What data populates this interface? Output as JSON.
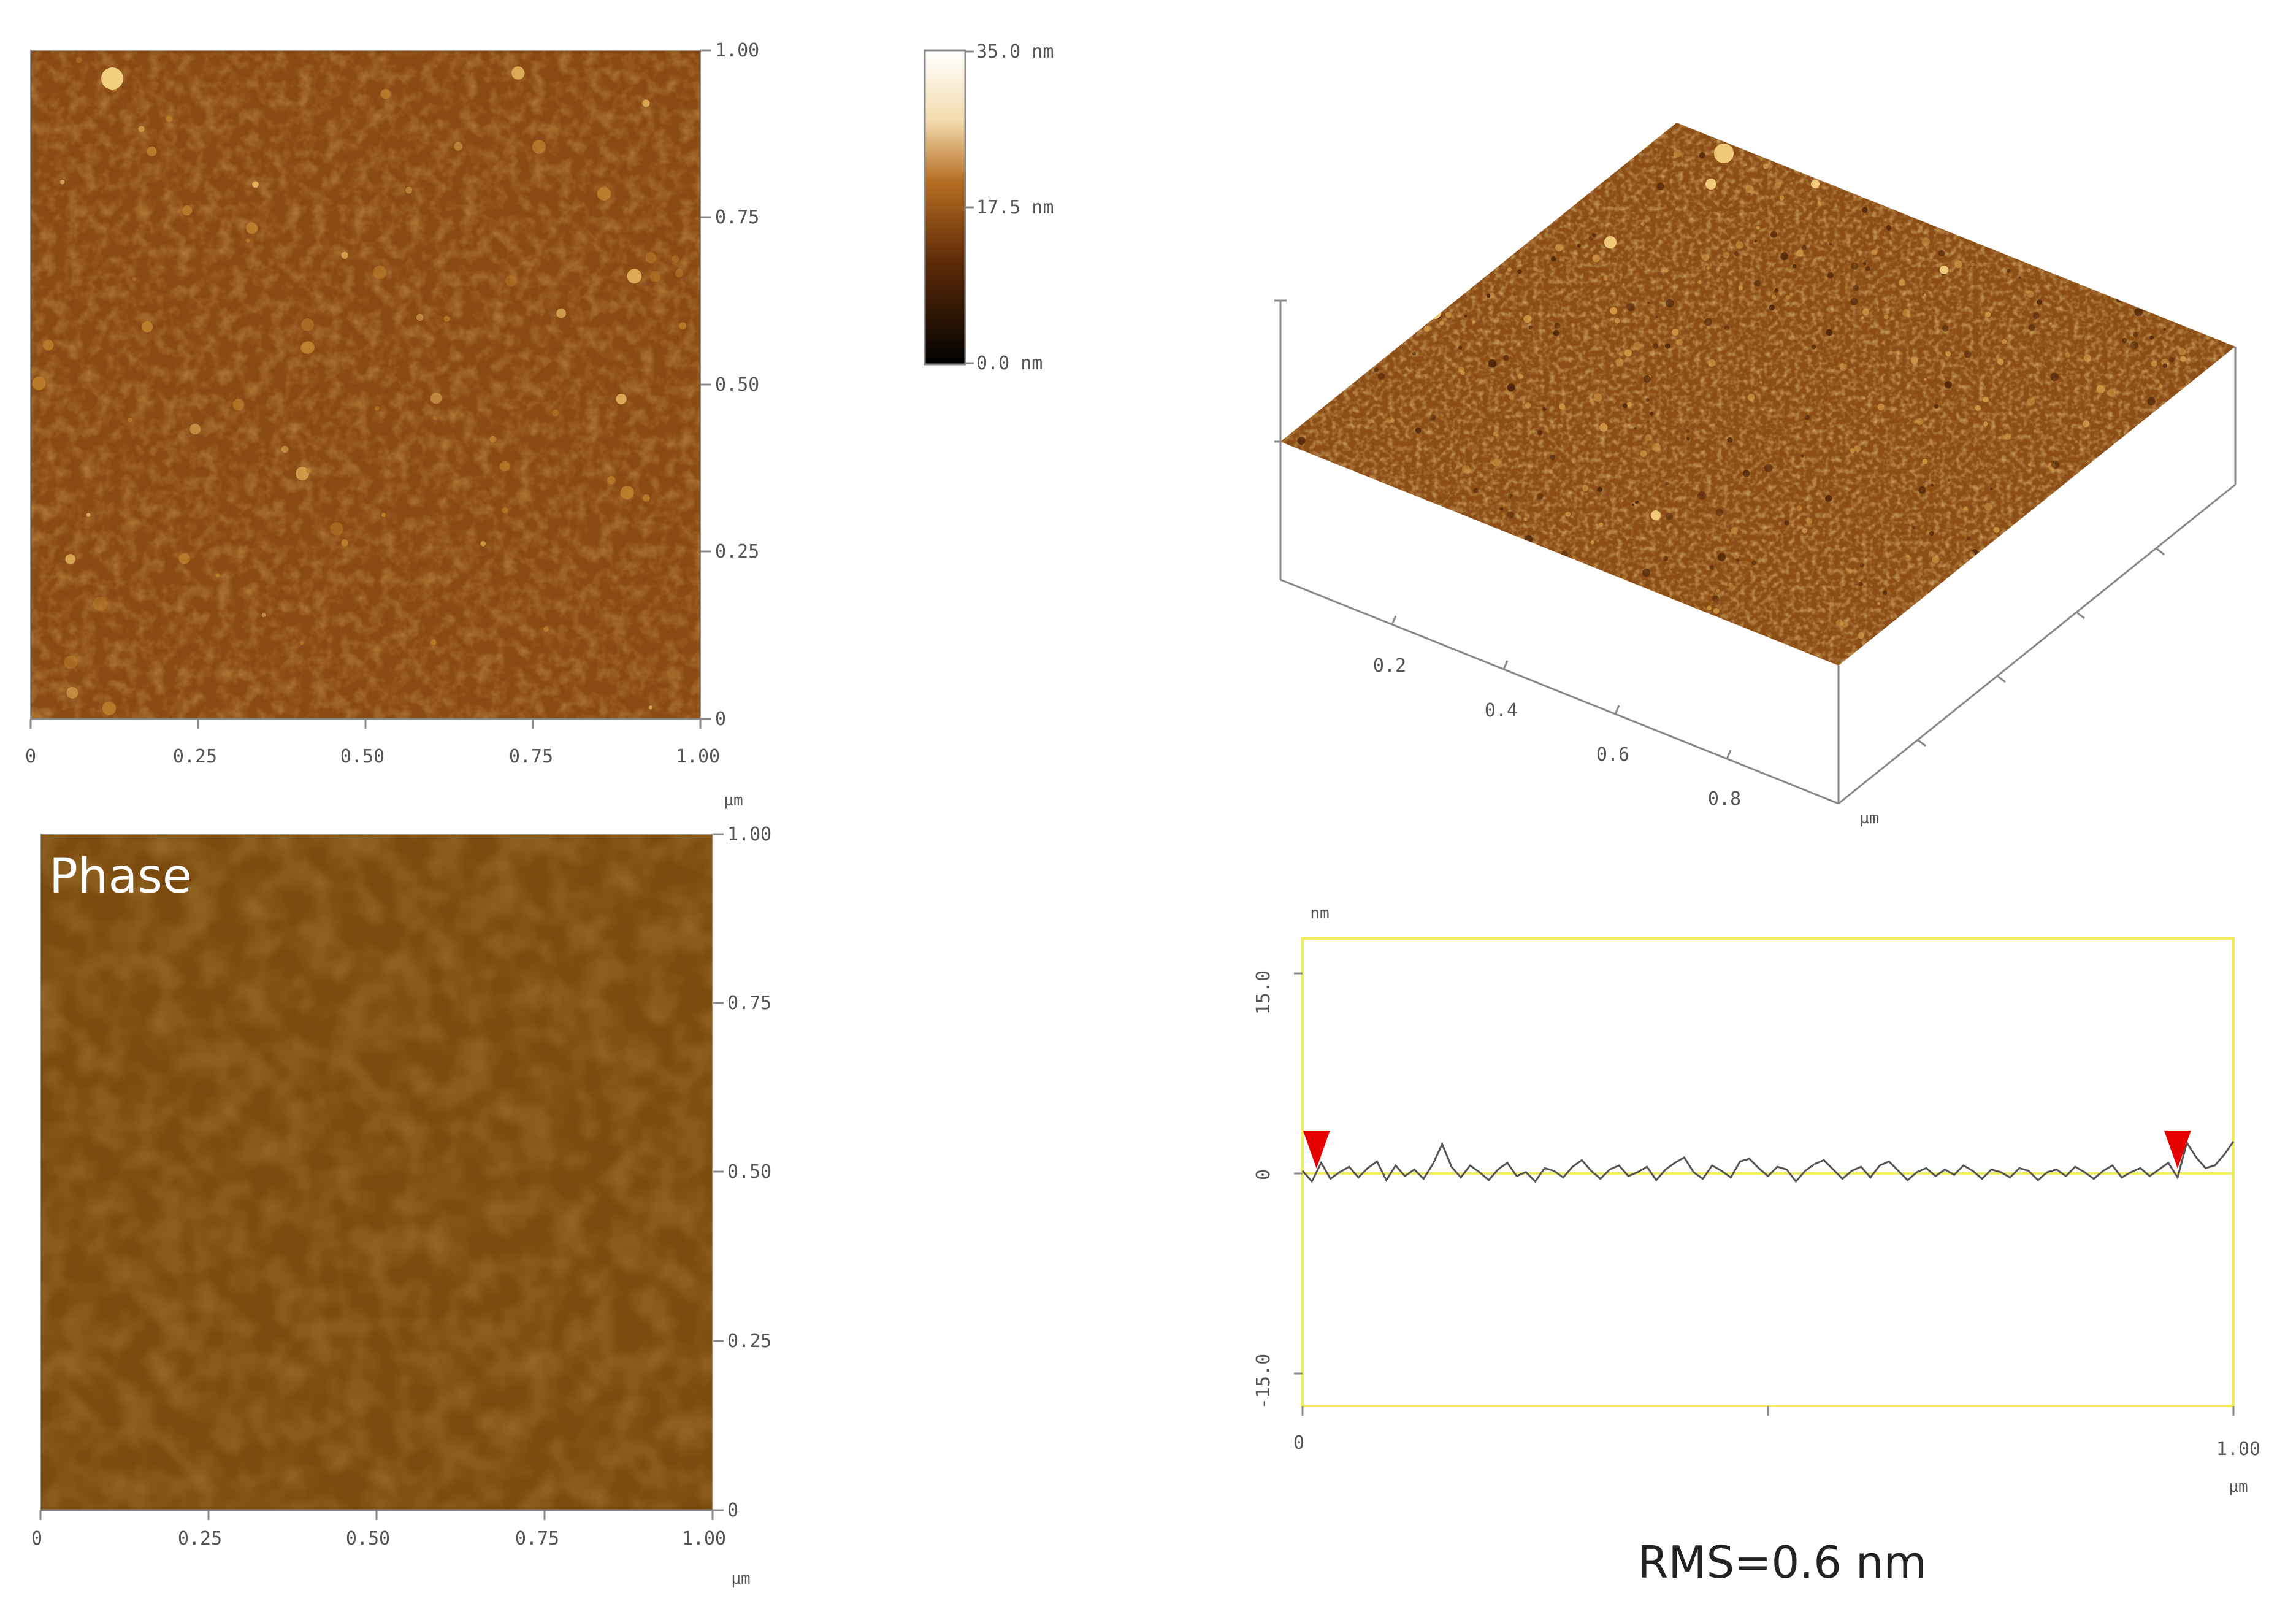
{
  "colors": {
    "height_base": "#8a4a14",
    "phase_base": "#7a4a0e",
    "surface_base": "#8c4e16",
    "profile_line": "#555555",
    "profile_frame": "#f2ee5a",
    "cursor": "#e60000"
  },
  "height_map": {
    "x_ticks": [
      "0",
      "0.25",
      "0.50",
      "0.75",
      "1.00"
    ],
    "y_ticks": [
      "1.00",
      "0.75",
      "0.50",
      "0.25",
      "0"
    ],
    "x_unit": "µm"
  },
  "phase_map": {
    "label": "Phase",
    "x_ticks": [
      "0",
      "0.25",
      "0.50",
      "0.75",
      "1.00"
    ],
    "y_ticks": [
      "1.00",
      "0.75",
      "0.50",
      "0.25",
      "0"
    ],
    "x_unit": "µm"
  },
  "colorbar": {
    "labels": [
      "35.0 nm",
      "17.5 nm",
      "0.0 nm"
    ],
    "stops": [
      "#ffffff",
      "#f0d6a0",
      "#b56d22",
      "#5c2a08",
      "#000000"
    ]
  },
  "surface_3d": {
    "x_ticks": [
      "0.2",
      "0.4",
      "0.6",
      "0.8"
    ],
    "unit": "µm"
  },
  "chart_data": {
    "type": "line",
    "title": "",
    "xlabel": "µm",
    "ylabel": "nm",
    "xlim": [
      0,
      1.0
    ],
    "ylim": [
      -15.0,
      15.0
    ],
    "x_tick_labels": [
      "0",
      "1.00"
    ],
    "y_tick_labels": [
      "15.0",
      "0",
      "-15.0"
    ],
    "x_unit_label": "µm",
    "y_unit_label": "nm",
    "cursor_positions_um": [
      0.015,
      0.94
    ],
    "series": [
      {
        "x": [
          0.0,
          0.01,
          0.02,
          0.03,
          0.04,
          0.05,
          0.06,
          0.07,
          0.08,
          0.09,
          0.1,
          0.11,
          0.12,
          0.13,
          0.14,
          0.15,
          0.16,
          0.17,
          0.18,
          0.19,
          0.2,
          0.21,
          0.22,
          0.23,
          0.24,
          0.25,
          0.26,
          0.27,
          0.28,
          0.29,
          0.3,
          0.31,
          0.32,
          0.33,
          0.34,
          0.35,
          0.36,
          0.37,
          0.38,
          0.39,
          0.4,
          0.41,
          0.42,
          0.43,
          0.44,
          0.45,
          0.46,
          0.47,
          0.48,
          0.49,
          0.5,
          0.51,
          0.52,
          0.53,
          0.54,
          0.55,
          0.56,
          0.57,
          0.58,
          0.59,
          0.6,
          0.61,
          0.62,
          0.63,
          0.64,
          0.65,
          0.66,
          0.67,
          0.68,
          0.69,
          0.7,
          0.71,
          0.72,
          0.73,
          0.74,
          0.75,
          0.76,
          0.77,
          0.78,
          0.79,
          0.8,
          0.81,
          0.82,
          0.83,
          0.84,
          0.85,
          0.86,
          0.87,
          0.88,
          0.89,
          0.9,
          0.91,
          0.92,
          0.93,
          0.94,
          0.95,
          0.96,
          0.97,
          0.98,
          0.99,
          1.0
        ],
        "values": [
          0.2,
          -0.6,
          0.8,
          -0.4,
          0.1,
          0.5,
          -0.3,
          0.4,
          0.9,
          -0.5,
          0.6,
          -0.2,
          0.3,
          -0.4,
          0.7,
          2.2,
          0.5,
          -0.3,
          0.6,
          0.1,
          -0.5,
          0.3,
          0.8,
          -0.2,
          0.1,
          -0.6,
          0.4,
          0.2,
          -0.3,
          0.5,
          1.0,
          0.2,
          -0.4,
          0.3,
          0.6,
          -0.2,
          0.1,
          0.5,
          -0.5,
          0.3,
          0.8,
          1.2,
          0.1,
          -0.4,
          0.6,
          0.2,
          -0.3,
          0.9,
          1.1,
          0.4,
          -0.2,
          0.5,
          0.3,
          -0.6,
          0.2,
          0.7,
          1.0,
          0.3,
          -0.4,
          0.2,
          0.5,
          -0.3,
          0.6,
          0.9,
          0.2,
          -0.5,
          0.1,
          0.4,
          -0.2,
          0.3,
          -0.1,
          0.6,
          0.2,
          -0.4,
          0.3,
          0.1,
          -0.3,
          0.4,
          0.2,
          -0.5,
          0.1,
          0.3,
          -0.2,
          0.5,
          0.1,
          -0.4,
          0.2,
          0.6,
          -0.3,
          0.1,
          0.4,
          -0.2,
          0.3,
          0.8,
          -0.3,
          2.3,
          1.2,
          0.4,
          0.6,
          1.4,
          2.4
        ]
      }
    ]
  },
  "annotation": {
    "rms": "RMS=0.6 nm"
  }
}
